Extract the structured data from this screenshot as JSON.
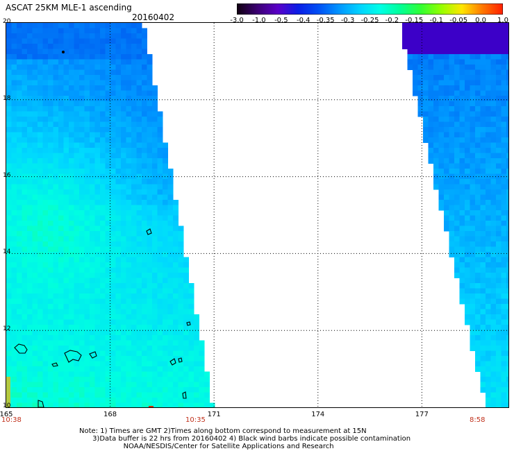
{
  "header": {
    "title": "ASCAT 25KM MLE-1 ascending",
    "date": "20160402"
  },
  "colorbar": {
    "ticks": [
      "-3.0",
      "-1.0",
      "-0.5",
      "-0.4",
      "-0.35",
      "-0.3",
      "-0.25",
      "-0.2",
      "-0.15",
      "-0.1",
      "-0.05",
      "0.0",
      "1.0"
    ],
    "colors": [
      "#100010",
      "#3c0073",
      "#5a00c8",
      "#0a1ee6",
      "#0050f5",
      "#0096ff",
      "#00d2ff",
      "#00ffe6",
      "#00ff96",
      "#32ff32",
      "#96ff00",
      "#ffe600",
      "#ff7800",
      "#ff1e00"
    ]
  },
  "chart_data": {
    "type": "heatmap",
    "title": "ASCAT 25KM MLE-1 ascending",
    "date": "20160402",
    "x_ticks": [
      "165",
      "168",
      "171",
      "174",
      "177"
    ],
    "y_ticks": [
      "20",
      "18",
      "16",
      "14",
      "12",
      "10"
    ],
    "xlim": [
      165,
      179.5
    ],
    "ylim": [
      10,
      20
    ],
    "grid": true,
    "colorbar_ticks": [
      -3.0,
      -1.0,
      -0.5,
      -0.4,
      -0.35,
      -0.3,
      -0.25,
      -0.2,
      -0.15,
      -0.1,
      -0.05,
      0.0,
      1.0
    ],
    "swaths": [
      {
        "name": "left",
        "time_label": "10:38",
        "time_label_2": "10:35"
      },
      {
        "name": "right",
        "time_label": "8:58"
      }
    ]
  },
  "footer": {
    "time_left": "10:38",
    "time_mid": "10:35",
    "time_right": "8:58",
    "note_line1": "Note: 1) Times are GMT 2)Times along bottom correspond to measurement at 15N",
    "note_line2": "      3)Data buffer is 22 hrs from 20160402 4) Black wind barbs indicate possible contamination",
    "note_line3": "                    NOAA/NESDIS/Center for Satellite Applications and Research"
  }
}
